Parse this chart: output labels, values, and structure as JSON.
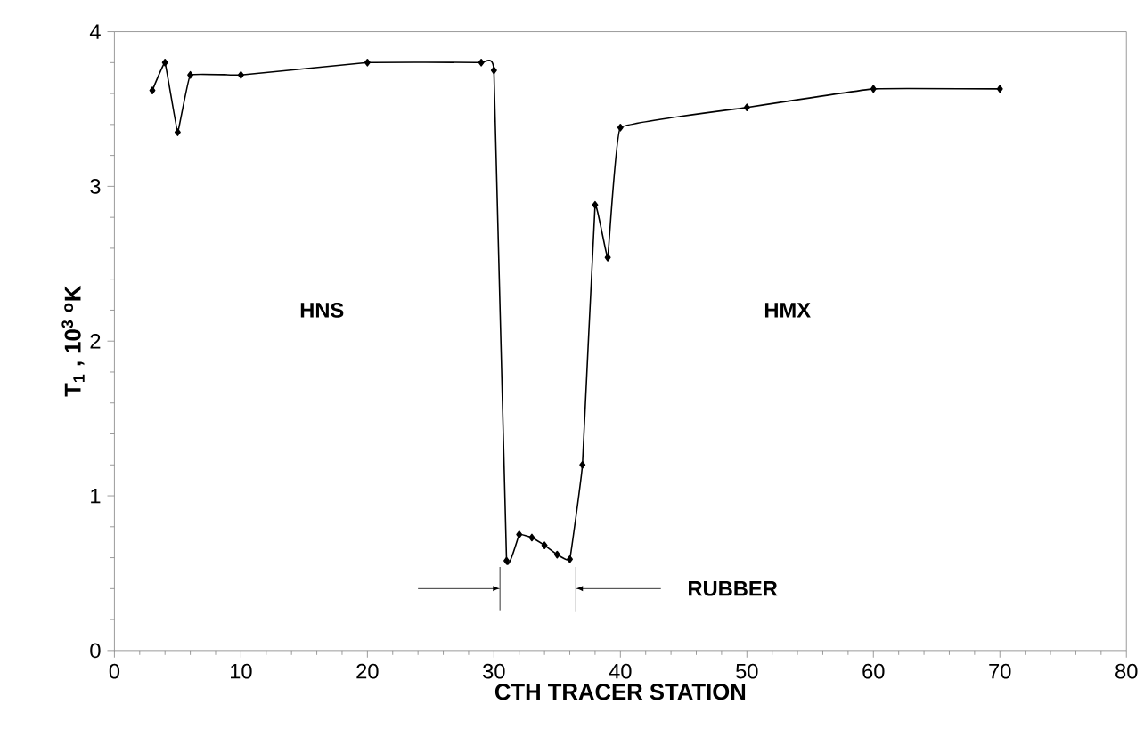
{
  "chart_data": {
    "type": "line",
    "xlabel": "CTH TRACER STATION",
    "ylabel": "T$_{1}$ , 10$^{3}$ $^{o}$K",
    "x": [
      3,
      4,
      5,
      6,
      10,
      20,
      29,
      30,
      31,
      32,
      33,
      34,
      35,
      36,
      37,
      38,
      39,
      40,
      50,
      60,
      70
    ],
    "series": [
      {
        "color": "#000000",
        "values": [
          3.62,
          3.8,
          3.35,
          3.72,
          3.72,
          3.8,
          3.8,
          3.75,
          0.58,
          0.75,
          0.73,
          0.68,
          0.62,
          0.59,
          1.2,
          2.88,
          2.54,
          3.38,
          3.51,
          3.63,
          3.63
        ]
      }
    ],
    "xlim": [
      0,
      80
    ],
    "ylim": [
      0,
      4
    ],
    "xticks": [
      0,
      10,
      20,
      30,
      40,
      50,
      60,
      70,
      80
    ],
    "yticks": [
      0,
      1,
      2,
      3,
      4
    ],
    "marker": "diamond",
    "line_style": "solid",
    "annotations": [
      "HNS",
      "HMX",
      "RUBBER"
    ]
  }
}
